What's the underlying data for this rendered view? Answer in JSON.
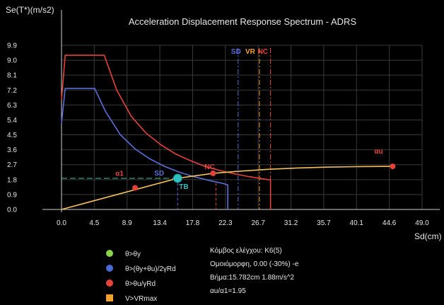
{
  "chart_data": {
    "type": "line",
    "title": "Acceleration Displacement Response Spectrum - ADRS",
    "ylabel": "Se(T*)(m/s2)",
    "xlabel": "Sd(cm)",
    "xlim": [
      0,
      49.0
    ],
    "ylim": [
      0,
      9.9
    ],
    "xticks": [
      "0.0",
      "4.5",
      "8.9",
      "13.4",
      "17.8",
      "22.3",
      "26.7",
      "31.2",
      "35.7",
      "40.1",
      "44.6",
      "49.0"
    ],
    "yticks": [
      "0.0",
      "0.9",
      "1.8",
      "2.7",
      "3.6",
      "4.5",
      "5.4",
      "6.3",
      "7.2",
      "8.1",
      "9.0",
      "9.9"
    ],
    "grid": true,
    "series": [
      {
        "color": "#e8413a",
        "points": [
          [
            0.0,
            6.6
          ],
          [
            0.5,
            9.3
          ],
          [
            5.8,
            9.3
          ],
          [
            7.5,
            7.2
          ],
          [
            9.5,
            5.6
          ],
          [
            11.5,
            4.6
          ],
          [
            13.5,
            3.9
          ],
          [
            15.5,
            3.35
          ],
          [
            17.5,
            2.95
          ],
          [
            19.5,
            2.6
          ],
          [
            21.5,
            2.35
          ],
          [
            23.5,
            2.15
          ],
          [
            25.5,
            1.98
          ],
          [
            27.5,
            1.84
          ],
          [
            28.4,
            1.78
          ],
          [
            28.4,
            0.0
          ]
        ]
      },
      {
        "color": "#5a6fd8",
        "points": [
          [
            0.0,
            5.2
          ],
          [
            0.5,
            7.3
          ],
          [
            4.5,
            7.3
          ],
          [
            6.0,
            5.9
          ],
          [
            8.0,
            4.5
          ],
          [
            10.0,
            3.65
          ],
          [
            12.0,
            3.05
          ],
          [
            14.0,
            2.6
          ],
          [
            16.0,
            2.25
          ],
          [
            18.0,
            1.98
          ],
          [
            20.0,
            1.76
          ],
          [
            22.0,
            1.56
          ],
          [
            22.6,
            1.48
          ],
          [
            22.6,
            0.0
          ]
        ]
      },
      {
        "color": "#f2c05a",
        "points": [
          [
            0.0,
            0.0
          ],
          [
            15.78,
            1.88
          ],
          [
            18.0,
            2.02
          ],
          [
            20.6,
            2.18
          ],
          [
            24.0,
            2.3
          ],
          [
            28.0,
            2.42
          ],
          [
            32.0,
            2.5
          ],
          [
            36.0,
            2.55
          ],
          [
            40.0,
            2.58
          ],
          [
            45.0,
            2.6
          ]
        ]
      }
    ],
    "dashed_line": {
      "color": "#3ec0a8",
      "y": 1.88,
      "x_from": 0.0,
      "x_to": 15.78
    },
    "performance_lines": [
      {
        "label": "SD",
        "x": 24.0,
        "color": "#5a6fd8"
      },
      {
        "label": "VR",
        "x": 26.9,
        "color": "#f2a030"
      },
      {
        "label": "NC",
        "x": 28.4,
        "color": "#e8413a"
      }
    ],
    "markers": [
      {
        "x": 10.0,
        "y": 1.3,
        "color": "#e8413a",
        "label": "α1",
        "label_color": "#e8413a"
      },
      {
        "x": 20.6,
        "y": 2.18,
        "color": "#e8413a",
        "label": "NC",
        "label_color": "#e8413a"
      },
      {
        "x": 45.0,
        "y": 2.6,
        "color": "#e8413a",
        "label": "αu",
        "label_color": "#e8413a"
      }
    ],
    "performance_point": {
      "x": 15.78,
      "y": 1.88,
      "color": "#2fbfbf",
      "label_top": "SD",
      "label_top_color": "#5a6fd8",
      "label_bottom": "TB",
      "label_bottom_color": "#2fbfbf"
    },
    "vertical_guides": [
      {
        "x": 15.78,
        "color": "#5a6fd8"
      },
      {
        "x": 21.0,
        "color": "#e8413a"
      }
    ]
  },
  "legend": [
    {
      "label": "θ>θy",
      "color": "#8bd34a",
      "shape": "circle"
    },
    {
      "label": "θ>(θy+θu)/2γRd",
      "color": "#4a6ad8",
      "shape": "circle"
    },
    {
      "label": "θ>θu/γRd",
      "color": "#e8413a",
      "shape": "circle"
    },
    {
      "label": "V>VRmax",
      "color": "#f2a030",
      "shape": "square"
    }
  ],
  "info": [
    "Κόμβος ελέγχου: Κ6(5)",
    "Ομοιόμορφη, 0.00 (-30%) -e",
    "Βήμα:15.782cm 1.88m/s^2",
    "αu/α1=1.95"
  ]
}
